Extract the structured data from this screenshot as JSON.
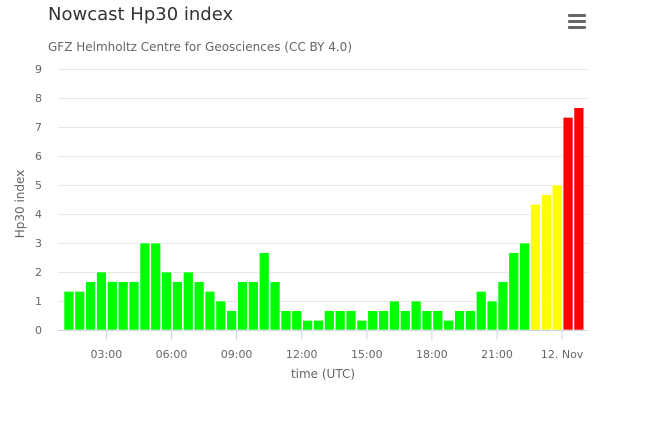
{
  "title": "Nowcast Hp30 index",
  "subtitle": "GFZ Helmholtz Centre for Geosciences (CC BY 4.0)",
  "menu_icon": "hamburger-menu-icon",
  "chart_data": {
    "type": "bar",
    "xlabel": "time (UTC)",
    "ylabel": "Hp30 index",
    "ylim": [
      0,
      9
    ],
    "yticks": [
      0,
      1,
      2,
      3,
      4,
      5,
      6,
      7,
      8,
      9
    ],
    "xtick_labels": [
      "03:00",
      "06:00",
      "09:00",
      "12:00",
      "15:00",
      "18:00",
      "21:00",
      "12. Nov"
    ],
    "interval_minutes": 30,
    "grid": true,
    "legend": "none",
    "colors": {
      "low": "#00ff00",
      "moderate": "#ffff00",
      "high": "#ff0000"
    },
    "values": [
      1.333,
      1.333,
      1.667,
      2.0,
      1.667,
      1.667,
      1.667,
      3.0,
      3.0,
      2.0,
      1.667,
      2.0,
      1.667,
      1.333,
      1.0,
      0.667,
      1.667,
      1.667,
      2.667,
      1.667,
      0.667,
      0.667,
      0.333,
      0.333,
      0.667,
      0.667,
      0.667,
      0.333,
      0.667,
      0.667,
      1.0,
      0.667,
      1.0,
      0.667,
      0.667,
      0.333,
      0.667,
      0.667,
      1.333,
      1.0,
      1.667,
      2.667,
      3.0,
      4.333,
      4.667,
      5.0,
      7.333,
      7.667
    ]
  }
}
